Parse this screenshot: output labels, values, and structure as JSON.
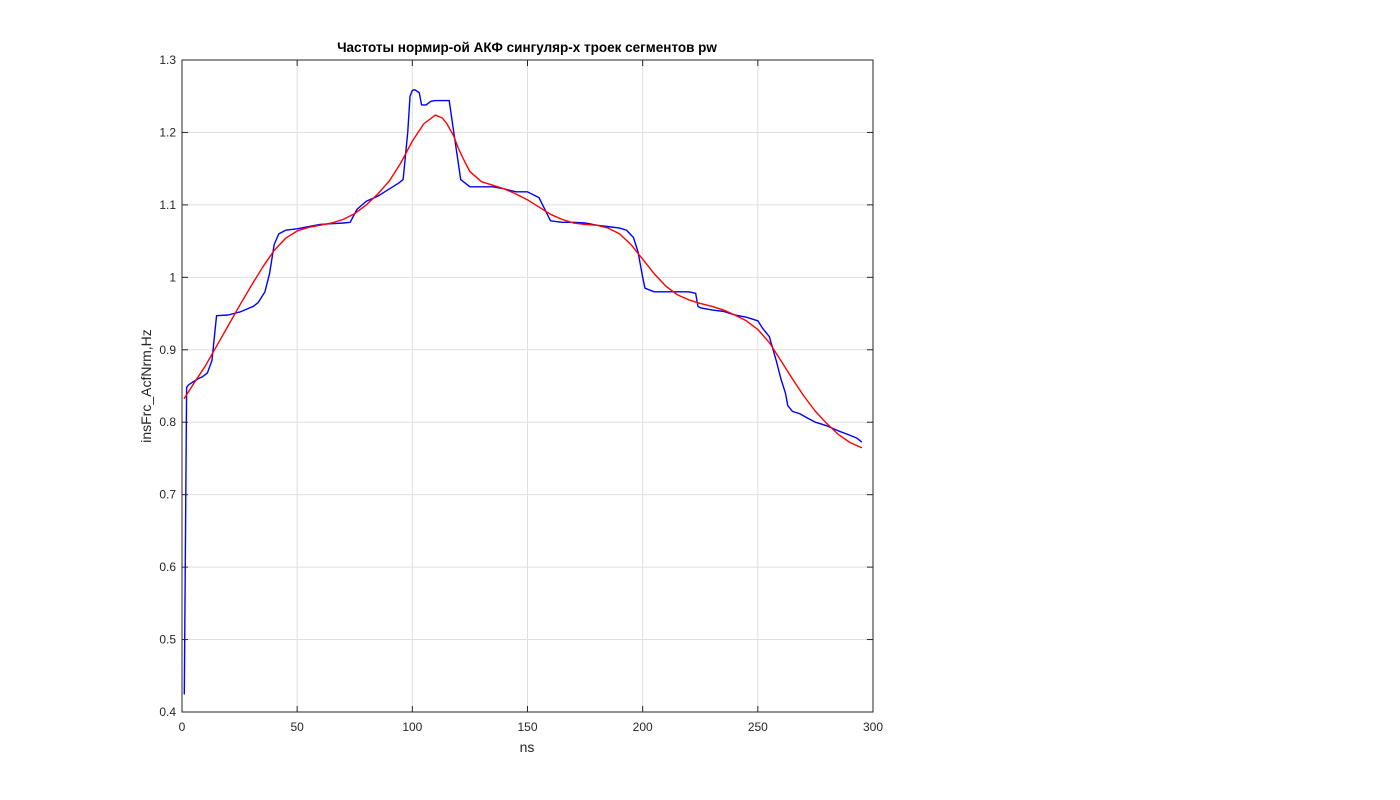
{
  "chart_data": {
    "type": "line",
    "title": "Частоты нормир-ой АКФ сингуляр-х троек сегментов pw",
    "xlabel": "ns",
    "ylabel": "insFrc_AcfNrm,Hz",
    "xlim": [
      0,
      300
    ],
    "ylim": [
      0.4,
      1.3
    ],
    "xticks": [
      0,
      50,
      100,
      150,
      200,
      250,
      300
    ],
    "yticks": [
      0.4,
      0.5,
      0.6,
      0.7,
      0.8,
      0.9,
      1,
      1.1,
      1.2,
      1.3
    ],
    "xtick_labels": [
      "0",
      "50",
      "100",
      "150",
      "200",
      "250",
      "300"
    ],
    "ytick_labels": [
      "0.4",
      "0.5",
      "0.6",
      "0.7",
      "0.8",
      "0.9",
      "1",
      "1.1",
      "1.2",
      "1.3"
    ],
    "grid": true,
    "legend": null,
    "series": [
      {
        "color": "#0000ff",
        "x": [
          1,
          2,
          3,
          5,
          7,
          9,
          11,
          13,
          15,
          20,
          25,
          28,
          31,
          33,
          36,
          38,
          40,
          42,
          45,
          50,
          55,
          60,
          65,
          70,
          73,
          76,
          80,
          85,
          90,
          94,
          96,
          98,
          99,
          100,
          101,
          103,
          104,
          106,
          108,
          110,
          113,
          116,
          118,
          121,
          123,
          125,
          128,
          131,
          135,
          140,
          145,
          150,
          155,
          160,
          165,
          170,
          175,
          180,
          185,
          190,
          193,
          196,
          198,
          200,
          201,
          205,
          210,
          215,
          220,
          223,
          224,
          225,
          230,
          235,
          240,
          245,
          250,
          252,
          255,
          258,
          260,
          262,
          263,
          265,
          268,
          272,
          275,
          280,
          285,
          290,
          293,
          295
        ],
        "y": [
          0.425,
          0.848,
          0.852,
          0.856,
          0.86,
          0.863,
          0.868,
          0.885,
          0.947,
          0.948,
          0.952,
          0.956,
          0.96,
          0.965,
          0.98,
          1.005,
          1.045,
          1.06,
          1.065,
          1.067,
          1.07,
          1.073,
          1.074,
          1.075,
          1.076,
          1.094,
          1.105,
          1.112,
          1.122,
          1.13,
          1.135,
          1.2,
          1.25,
          1.258,
          1.259,
          1.255,
          1.238,
          1.238,
          1.243,
          1.244,
          1.244,
          1.244,
          1.2,
          1.135,
          1.13,
          1.125,
          1.125,
          1.125,
          1.125,
          1.122,
          1.118,
          1.118,
          1.11,
          1.078,
          1.076,
          1.076,
          1.075,
          1.072,
          1.07,
          1.068,
          1.065,
          1.055,
          1.035,
          1.0,
          0.985,
          0.98,
          0.98,
          0.98,
          0.98,
          0.978,
          0.96,
          0.958,
          0.955,
          0.953,
          0.948,
          0.945,
          0.94,
          0.93,
          0.918,
          0.885,
          0.86,
          0.84,
          0.823,
          0.815,
          0.812,
          0.805,
          0.8,
          0.795,
          0.788,
          0.782,
          0.778,
          0.773
        ]
      },
      {
        "color": "#ff0000",
        "x": [
          1,
          5,
          10,
          15,
          20,
          25,
          30,
          35,
          40,
          45,
          50,
          55,
          60,
          65,
          70,
          75,
          80,
          85,
          90,
          95,
          100,
          105,
          110,
          113,
          115,
          118,
          120,
          123,
          125,
          130,
          135,
          140,
          145,
          150,
          155,
          160,
          165,
          170,
          175,
          180,
          185,
          190,
          195,
          200,
          205,
          210,
          215,
          220,
          225,
          230,
          235,
          240,
          245,
          250,
          255,
          260,
          265,
          270,
          275,
          280,
          285,
          290,
          295
        ],
        "y": [
          0.833,
          0.853,
          0.877,
          0.905,
          0.933,
          0.961,
          0.988,
          1.014,
          1.037,
          1.054,
          1.064,
          1.069,
          1.072,
          1.075,
          1.08,
          1.088,
          1.1,
          1.115,
          1.133,
          1.158,
          1.188,
          1.212,
          1.224,
          1.22,
          1.212,
          1.195,
          1.178,
          1.158,
          1.146,
          1.132,
          1.127,
          1.122,
          1.115,
          1.107,
          1.097,
          1.087,
          1.08,
          1.075,
          1.073,
          1.072,
          1.068,
          1.06,
          1.045,
          1.025,
          1.005,
          0.988,
          0.976,
          0.969,
          0.964,
          0.96,
          0.955,
          0.948,
          0.94,
          0.928,
          0.91,
          0.885,
          0.86,
          0.836,
          0.815,
          0.798,
          0.783,
          0.772,
          0.765
        ]
      }
    ]
  }
}
